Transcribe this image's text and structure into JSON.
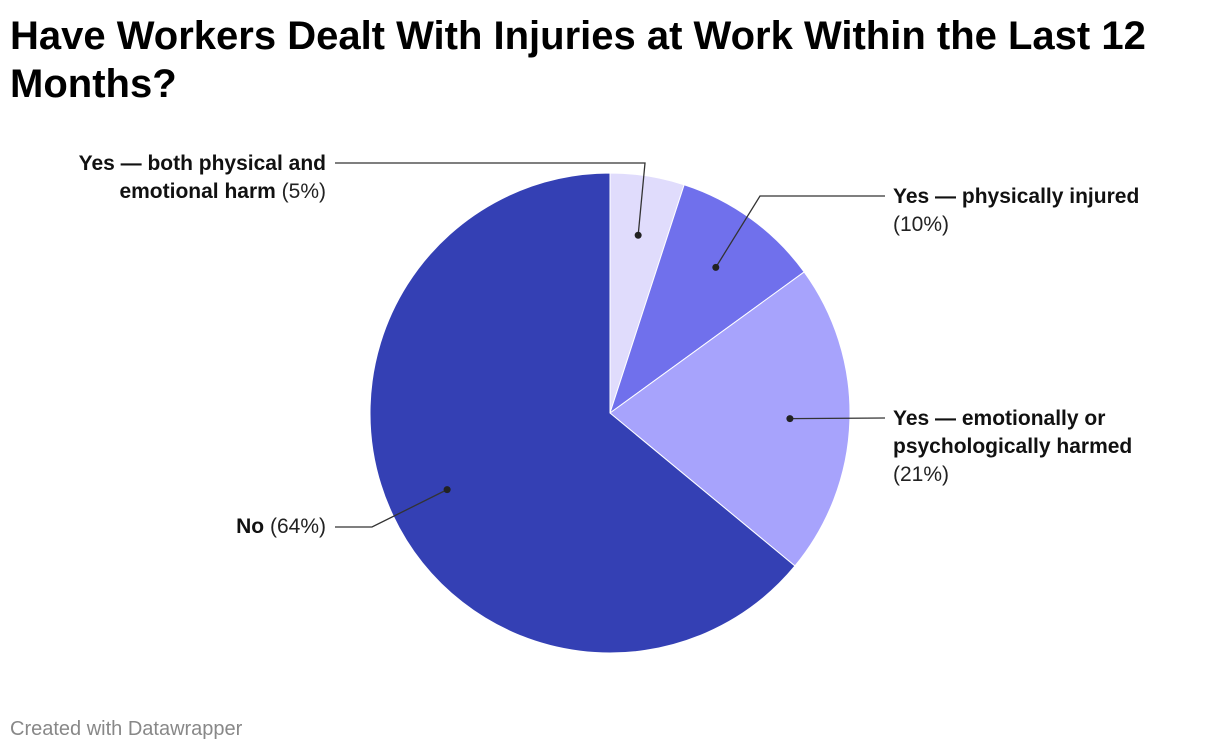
{
  "chart_data": {
    "type": "pie",
    "title": "Have Workers Dealt With Injuries at Work Within the Last 12 Months?",
    "categories": [
      "Yes — both physical and emotional harm",
      "Yes — physically injured",
      "Yes — emotionally or psychologically harmed",
      "No"
    ],
    "values": [
      5,
      10,
      21,
      64
    ],
    "value_labels": [
      "(5%)",
      "(10%)",
      "(21%)",
      "(64%)"
    ],
    "colors": [
      "#e0dcfc",
      "#7070ec",
      "#a7a3fc",
      "#3440b4"
    ],
    "credit": "Created with Datawrapper"
  }
}
